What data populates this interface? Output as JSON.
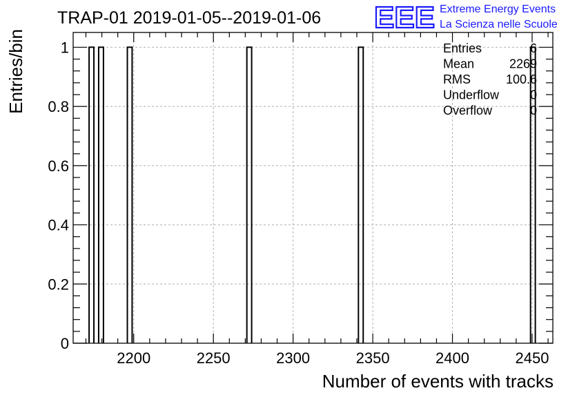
{
  "colors": {
    "logo": "#1a1aff",
    "grid": "#b0b0b0",
    "bars": "#000000"
  },
  "logo": {
    "mark": "EEE",
    "line1": "Extreme Energy Events",
    "line2": "La Scienza nelle Scuole"
  },
  "stats": {
    "rows": [
      {
        "label": "Entries",
        "value": "6"
      },
      {
        "label": "Mean",
        "value": "2269"
      },
      {
        "label": "RMS",
        "value": "100.6"
      },
      {
        "label": "Underflow",
        "value": "0"
      },
      {
        "label": "Overflow",
        "value": "0"
      }
    ]
  },
  "chart_data": {
    "type": "bar",
    "title": "TRAP-01 2019-01-05--2019-01-06",
    "xlabel": "Number of events with tracks",
    "ylabel": "Entries/bin",
    "xlim": [
      2162,
      2463
    ],
    "ylim": [
      0,
      1.05
    ],
    "grid": true,
    "bin_width": 3,
    "bins": [
      {
        "x": 2173.5,
        "value": 1
      },
      {
        "x": 2179.5,
        "value": 1
      },
      {
        "x": 2197.5,
        "value": 1
      },
      {
        "x": 2272.5,
        "value": 1
      },
      {
        "x": 2342.5,
        "value": 1
      },
      {
        "x": 2450.5,
        "value": 1
      }
    ],
    "xticks": [
      2200,
      2250,
      2300,
      2350,
      2400,
      2450
    ],
    "xtick_labels": [
      "2200",
      "2250",
      "2300",
      "2350",
      "2400",
      "2450"
    ],
    "yticks": [
      0,
      0.2,
      0.4,
      0.6,
      0.8,
      1
    ],
    "ytick_labels": [
      "0",
      "0.2",
      "0.4",
      "0.6",
      "0.8",
      "1"
    ]
  }
}
